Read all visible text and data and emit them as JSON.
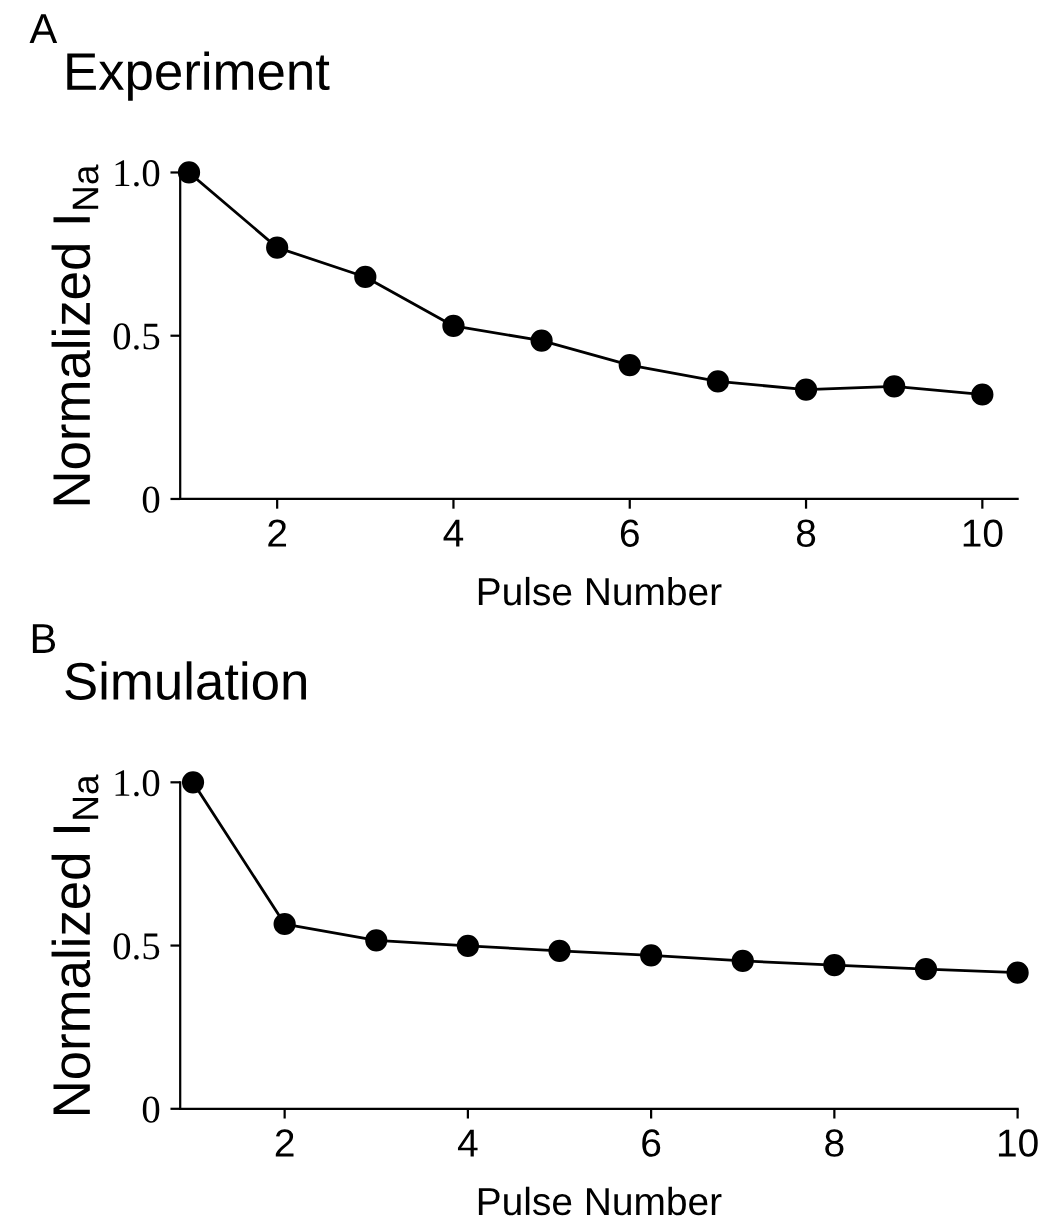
{
  "chart_data": [
    {
      "type": "line",
      "title": "Experiment",
      "annotations": [
        "A"
      ],
      "xlabel": "Pulse Number",
      "ylabel": "Normalized I$_{Na}$",
      "x": [
        1,
        2,
        3,
        4,
        5,
        6,
        7,
        8,
        9,
        10
      ],
      "series": [
        {
          "color": "#000000",
          "values": [
            1.0,
            0.77,
            0.68,
            0.53,
            0.485,
            0.41,
            0.36,
            0.335,
            0.345,
            0.32
          ]
        }
      ],
      "xlim": [
        0.9,
        10.4
      ],
      "ylim": [
        0,
        1.0
      ],
      "xticks": [
        2,
        4,
        6,
        8,
        10
      ],
      "yticks": [
        0,
        0.5,
        {
          "value": 1.0,
          "label": "1.0"
        }
      ],
      "marker": "circle",
      "line_style": "solid",
      "grid": false,
      "legend": false
    },
    {
      "type": "line",
      "title": "Simulation",
      "annotations": [
        "B"
      ],
      "xlabel": "Pulse Number",
      "ylabel": "Normalized I$_{Na}$",
      "x": [
        1,
        2,
        3,
        4,
        5,
        6,
        7,
        8,
        9,
        10
      ],
      "series": [
        {
          "color": "#000000",
          "values": [
            1.0,
            0.566,
            0.516,
            0.499,
            0.484,
            0.47,
            0.453,
            0.44,
            0.428,
            0.417
          ]
        }
      ],
      "xlim": [
        0.86,
        10
      ],
      "ylim": [
        0,
        1.0
      ],
      "xticks": [
        2,
        4,
        6,
        8,
        10
      ],
      "yticks": [
        0,
        0.5,
        {
          "value": 1.0,
          "label": "1.0"
        }
      ],
      "marker": "circle",
      "line_style": "solid",
      "grid": false,
      "legend": false
    }
  ]
}
